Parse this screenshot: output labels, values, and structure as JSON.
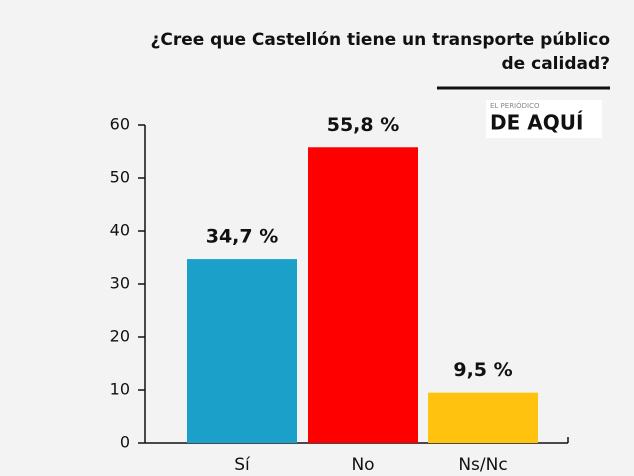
{
  "chart_data": {
    "type": "bar",
    "title": [
      "¿Cree que Castellón tiene un transporte público",
      "de calidad?"
    ],
    "logo": {
      "top": "EL PERIÓDICO",
      "main": "DE AQUÍ"
    },
    "categories": [
      "Sí",
      "No",
      "Ns/Nc"
    ],
    "values": [
      34.7,
      55.8,
      9.5
    ],
    "value_labels": [
      "34,7 %",
      "55,8 %",
      "9,5 %"
    ],
    "colors": [
      "#1aa0c9",
      "#ff0000",
      "#ffc20e"
    ],
    "ylim": [
      0,
      60
    ],
    "yticks": [
      0,
      10,
      20,
      30,
      40,
      50,
      60
    ]
  }
}
